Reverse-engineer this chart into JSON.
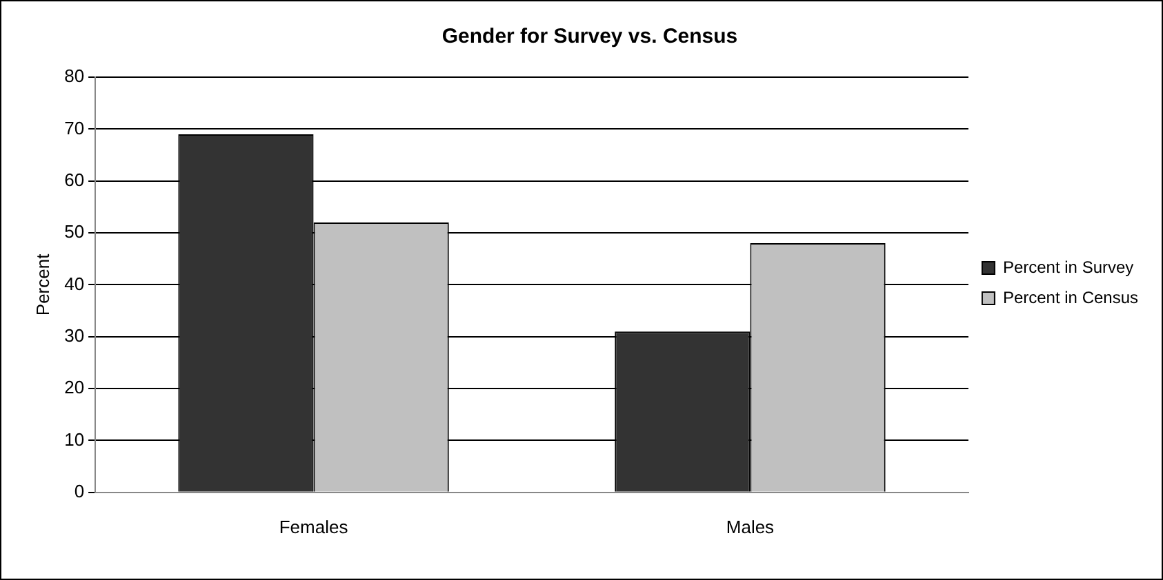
{
  "chart_data": {
    "type": "bar",
    "title": "Gender for Survey vs. Census",
    "ylabel": "Percent",
    "categories": [
      "Females",
      "Males"
    ],
    "series": [
      {
        "name": "Percent in Survey",
        "color": "#333333",
        "values": [
          69,
          31
        ]
      },
      {
        "name": "Percent in Census",
        "color": "#c0c0c0",
        "values": [
          52,
          48
        ]
      }
    ],
    "ylim": [
      0,
      80
    ],
    "yticks": [
      0,
      10,
      20,
      30,
      40,
      50,
      60,
      70,
      80
    ],
    "grid": "y",
    "legend": "right"
  }
}
